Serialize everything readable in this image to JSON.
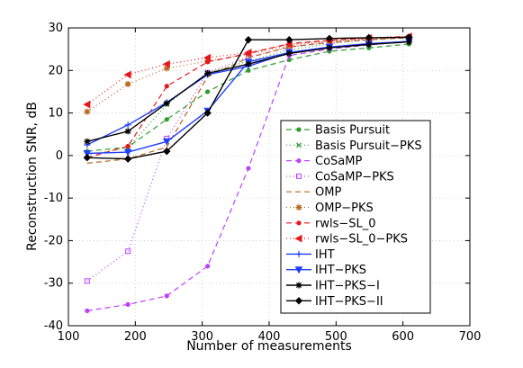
{
  "chart_data": {
    "type": "line",
    "title": "",
    "xlabel": "Number of measurements",
    "ylabel": "Reconstruction SNR, dB",
    "xlim": [
      100,
      700
    ],
    "ylim": [
      -40,
      30
    ],
    "xticks": [
      "100",
      "200",
      "300",
      "400",
      "500",
      "600",
      "700"
    ],
    "yticks": [
      "-40",
      "-30",
      "-20",
      "-10",
      "0",
      "10",
      "20",
      "30"
    ],
    "grid": true,
    "legend_position": "center-right",
    "x": [
      128,
      189,
      247,
      308,
      369,
      430,
      490,
      549,
      609
    ],
    "series": [
      {
        "name": "Basis Pursuit",
        "color": "#2ca02c",
        "dash": "6,4",
        "marker": "dot",
        "values": [
          1,
          2,
          8.5,
          15,
          20,
          22.5,
          24.5,
          25.3,
          26.2
        ]
      },
      {
        "name": "Basis Pursuit−PKS",
        "color": "#2ca02c",
        "dash": "1,3",
        "marker": "x",
        "values": [
          0.2,
          1.8,
          12,
          19.5,
          22.2,
          24.8,
          26.3,
          27.2,
          27.8
        ]
      },
      {
        "name": "CoSaMP",
        "color": "#bf3fff",
        "dash": "6,4",
        "marker": "dot",
        "values": [
          -36.5,
          -35,
          -33,
          -26,
          -3,
          23.5,
          25,
          26,
          26.8
        ]
      },
      {
        "name": "CoSaMP−PKS",
        "color": "#bf3fff",
        "dash": "1,3",
        "marker": "square",
        "values": [
          -29.5,
          -22.5,
          4,
          19.5,
          23.2,
          25.5,
          26.5,
          27.3,
          27.8
        ]
      },
      {
        "name": "OMP",
        "color": "#b8651a",
        "dash": "6,4",
        "marker": "none",
        "values": [
          -1.8,
          -0.8,
          2,
          18.5,
          23,
          25.5,
          26.6,
          27.2,
          27.7
        ]
      },
      {
        "name": "OMP−PKS",
        "color": "#b8651a",
        "dash": "1,3",
        "marker": "star",
        "values": [
          10.3,
          16.8,
          20.5,
          22.2,
          23.8,
          25.8,
          26.9,
          27.4,
          27.8
        ]
      },
      {
        "name": "rwls−SL_0",
        "color": "#e8161b",
        "dash": "6,4",
        "marker": "dot",
        "values": [
          -0.5,
          2.2,
          16.3,
          22,
          24,
          26.3,
          27.1,
          27.6,
          28
        ]
      },
      {
        "name": "rwls−SL_0−PKS",
        "color": "#e8161b",
        "dash": "1,3",
        "marker": "triangle-left",
        "values": [
          12,
          19,
          21.5,
          23,
          24.2,
          26.1,
          27,
          27.6,
          28
        ]
      },
      {
        "name": "IHT",
        "color": "#1f3fff",
        "dash": "none",
        "marker": "plus",
        "values": [
          2.5,
          7.2,
          12.5,
          19,
          21,
          24.2,
          25.5,
          26.3,
          26.8
        ]
      },
      {
        "name": "IHT−PKS",
        "color": "#1f3fff",
        "dash": "none",
        "marker": "triangle-down",
        "values": [
          0.5,
          0.8,
          3.3,
          10.5,
          22,
          24.2,
          25.5,
          26.2,
          26.8
        ]
      },
      {
        "name": "IHT−PKS−I",
        "color": "#000000",
        "dash": "none",
        "marker": "star",
        "values": [
          3.3,
          5.7,
          12.3,
          19.3,
          21.5,
          24,
          25.3,
          26.1,
          26.7
        ]
      },
      {
        "name": "IHT−PKS−II",
        "color": "#000000",
        "dash": "none",
        "marker": "diamond",
        "values": [
          -0.5,
          -0.8,
          1,
          10,
          27.2,
          27.2,
          27.5,
          27.7,
          27.8
        ]
      }
    ]
  }
}
